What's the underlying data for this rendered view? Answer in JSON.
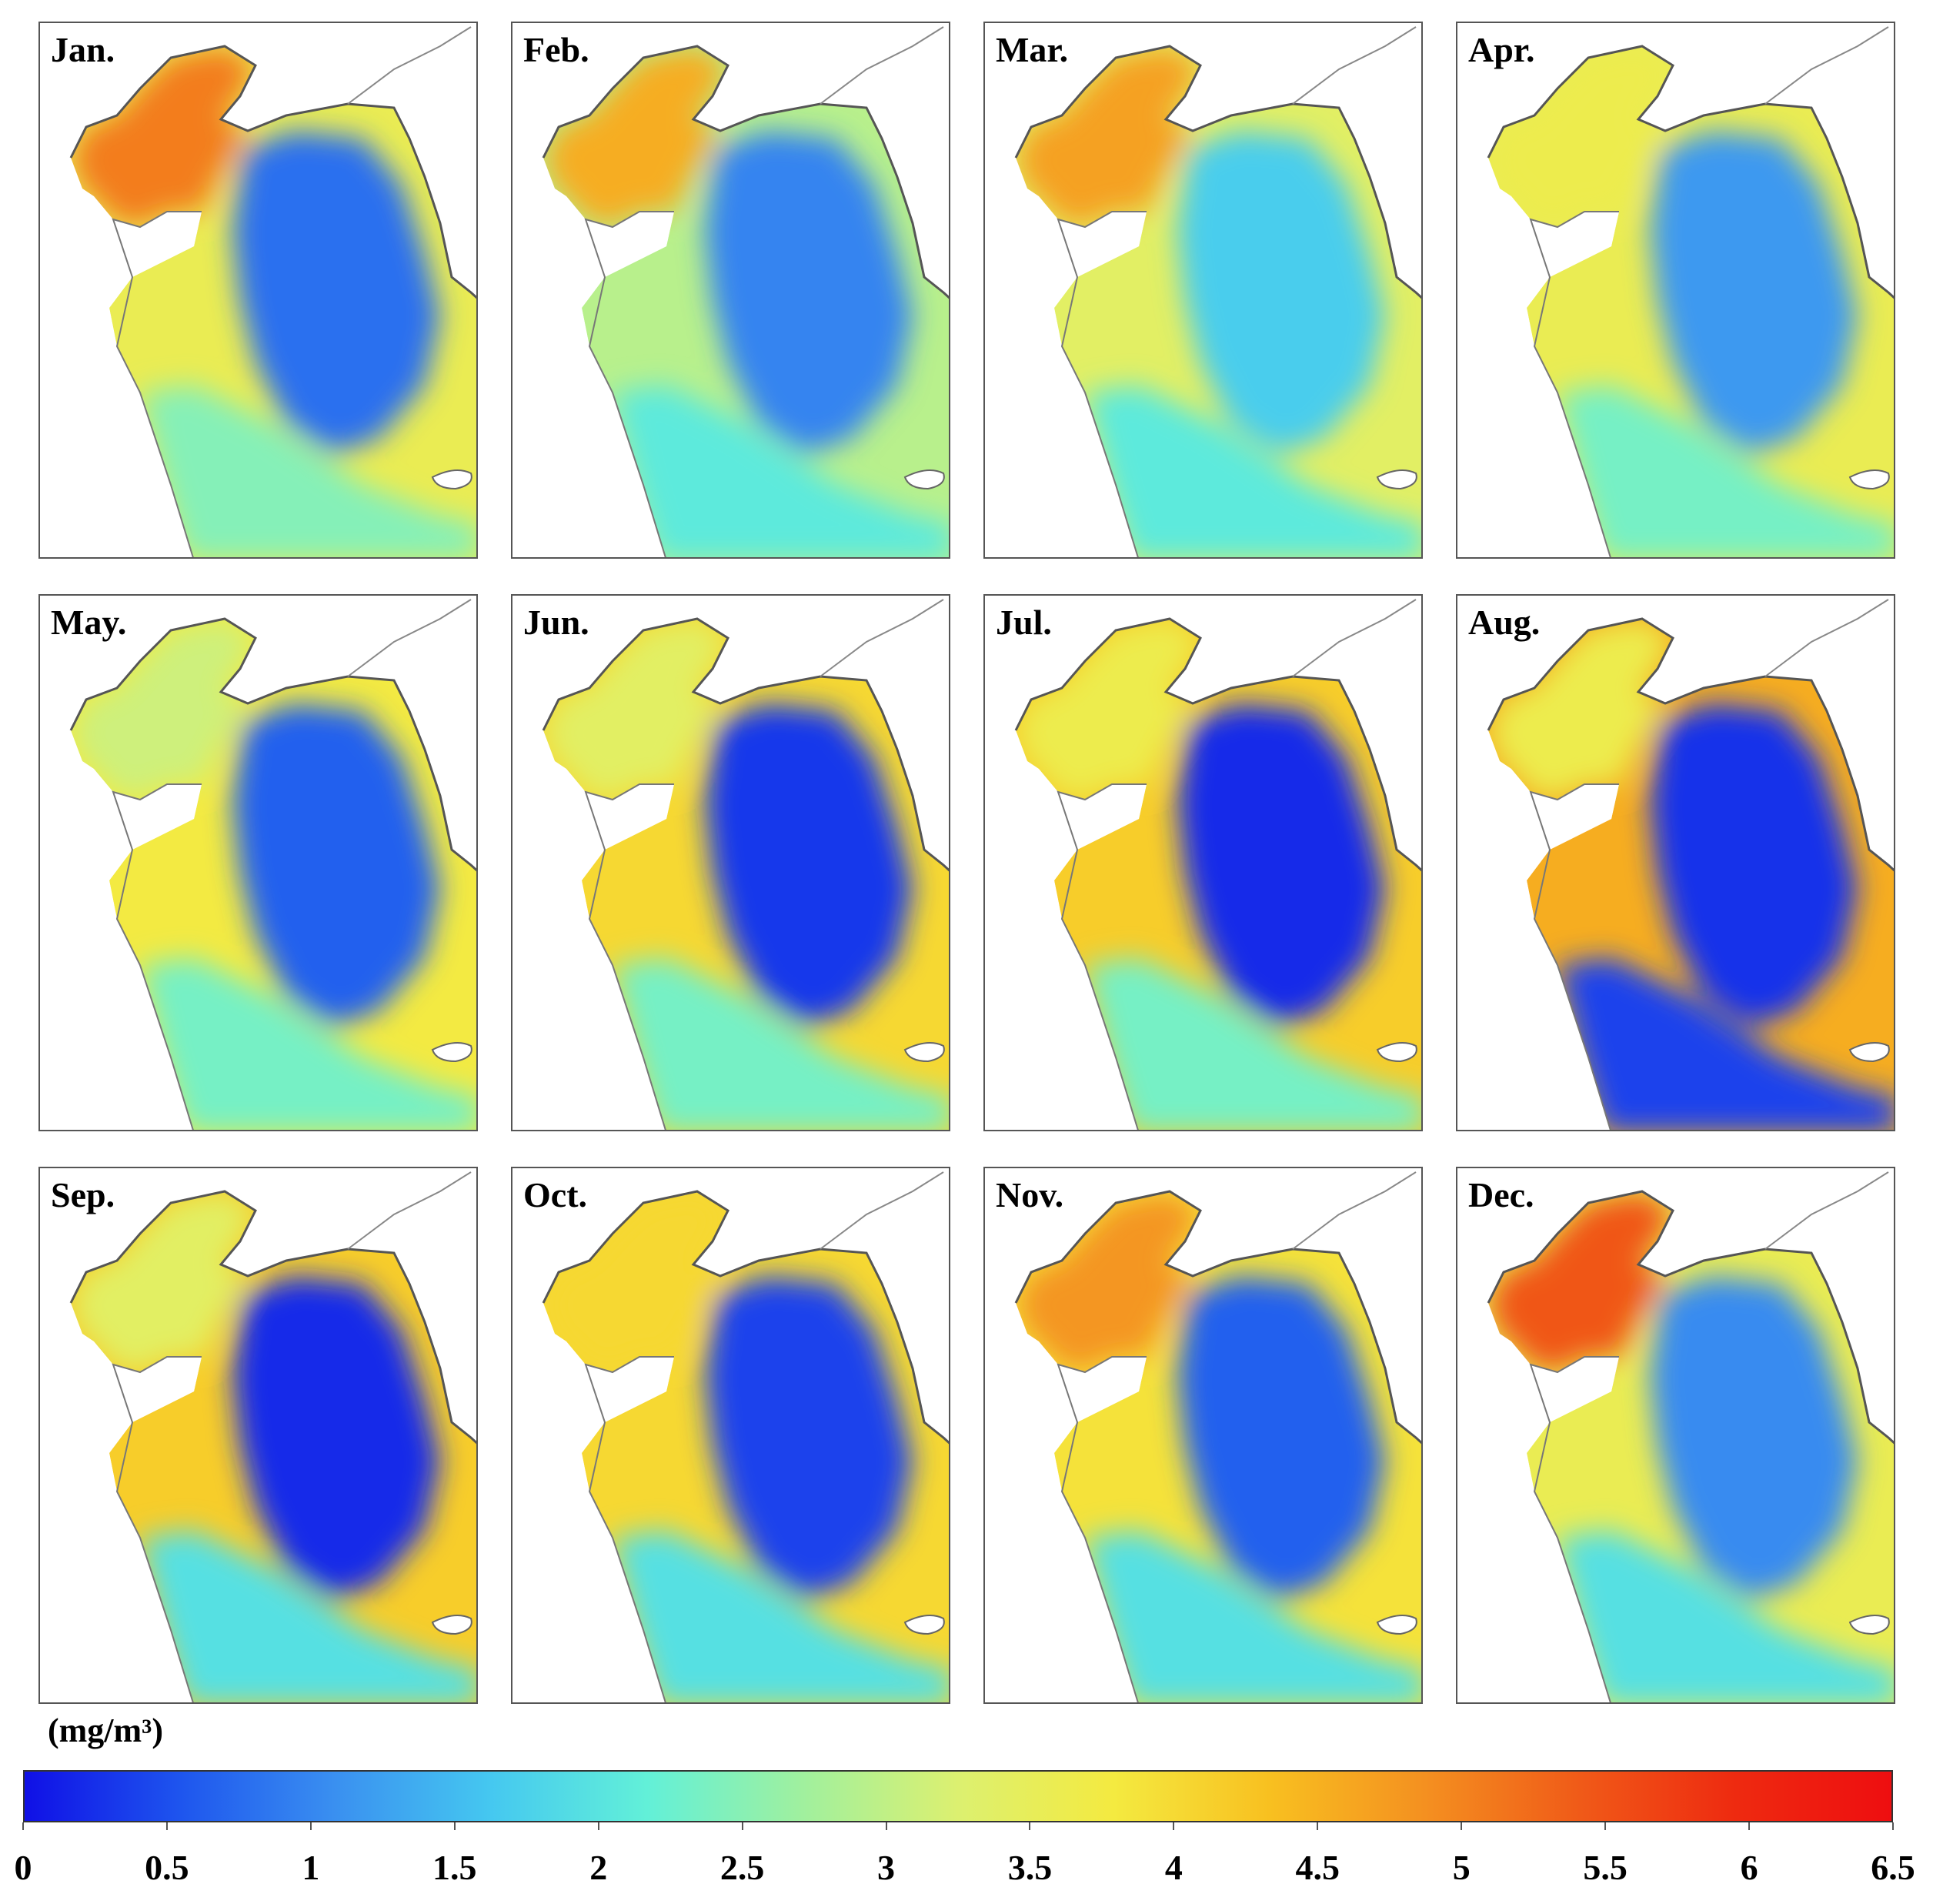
{
  "figure": {
    "panels": [
      {
        "label": "Jan.",
        "north": 0.78,
        "cent": 0.12,
        "south": 0.38,
        "coast": 0.55
      },
      {
        "label": "Feb.",
        "north": 0.7,
        "cent": 0.15,
        "south": 0.32,
        "coast": 0.45
      },
      {
        "label": "Mar.",
        "north": 0.72,
        "cent": 0.26,
        "south": 0.32,
        "coast": 0.52
      },
      {
        "label": "Apr.",
        "north": 0.56,
        "cent": 0.18,
        "south": 0.36,
        "coast": 0.55
      },
      {
        "label": "May.",
        "north": 0.48,
        "cent": 0.1,
        "south": 0.36,
        "coast": 0.58
      },
      {
        "label": "Jun.",
        "north": 0.52,
        "cent": 0.05,
        "south": 0.36,
        "coast": 0.62
      },
      {
        "label": "Jul.",
        "north": 0.56,
        "cent": 0.03,
        "south": 0.36,
        "coast": 0.64
      },
      {
        "label": "Aug.",
        "north": 0.56,
        "cent": 0.04,
        "south": 0.06,
        "coast": 0.7
      },
      {
        "label": "Sep.",
        "north": 0.52,
        "cent": 0.03,
        "south": 0.3,
        "coast": 0.64
      },
      {
        "label": "Oct.",
        "north": 0.62,
        "cent": 0.06,
        "south": 0.3,
        "coast": 0.62
      },
      {
        "label": "Nov.",
        "north": 0.74,
        "cent": 0.1,
        "south": 0.3,
        "coast": 0.6
      },
      {
        "label": "Dec.",
        "north": 0.84,
        "cent": 0.16,
        "south": 0.3,
        "coast": 0.55
      }
    ]
  },
  "colorbar": {
    "unit": "(mg/m³)",
    "min": 0,
    "max": 6.5,
    "ticks": [
      "0",
      "0.5",
      "1",
      "1.5",
      "2",
      "2.5",
      "3",
      "3.5",
      "4",
      "4.5",
      "5",
      "5.5",
      "6",
      "6.5"
    ],
    "colors": [
      "#1010e6",
      "#1e55ee",
      "#3a90f0",
      "#45c8f0",
      "#62f0d8",
      "#a0f09e",
      "#dcf070",
      "#f4ea40",
      "#f8c020",
      "#f49020",
      "#f05a18",
      "#ee2a10",
      "#ee0e10"
    ]
  }
}
